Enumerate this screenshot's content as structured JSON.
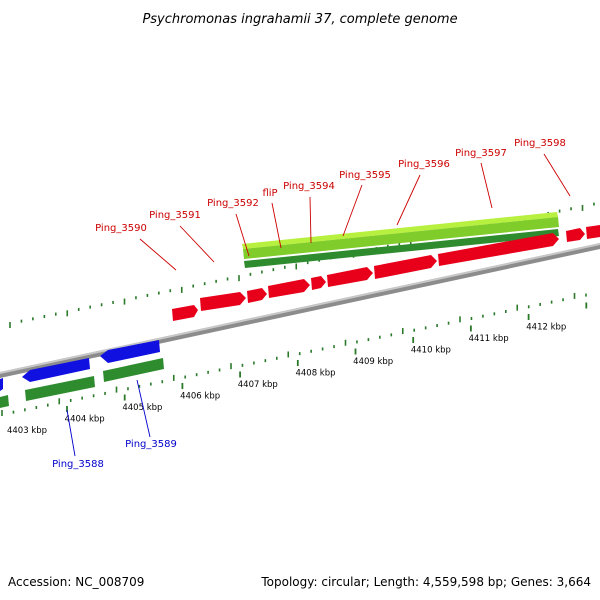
{
  "title": "Psychromonas ingrahamii 37, complete genome",
  "accession": "Accession: NC_008709",
  "topology": "Topology: circular; Length: 4,559,598 bp; Genes: 3,664",
  "colors": {
    "forward_cds": "#e8001a",
    "reverse_cds": "#1010e0",
    "forward_gene": "#b8f040",
    "reverse_gene": "#2e8b2e",
    "backbone": "#8c8c8c",
    "tick_green": "#2a7a2a",
    "label_red": "#cc0000",
    "label_blue": "#0000cc"
  },
  "scale": {
    "labels": [
      "4403 kbp",
      "4404 kbp",
      "4405 kbp",
      "4406 kbp",
      "4407 kbp",
      "4408 kbp",
      "4409 kbp",
      "4410 kbp",
      "4411 kbp",
      "4412 kbp"
    ]
  },
  "gene_labels": {
    "forward": [
      "Ping_3590",
      "Ping_3591",
      "Ping_3592",
      "fliP",
      "Ping_3594",
      "Ping_3595",
      "Ping_3596",
      "Ping_3597",
      "Ping_3598"
    ],
    "reverse": [
      "Ping_3588",
      "Ping_3589"
    ]
  }
}
